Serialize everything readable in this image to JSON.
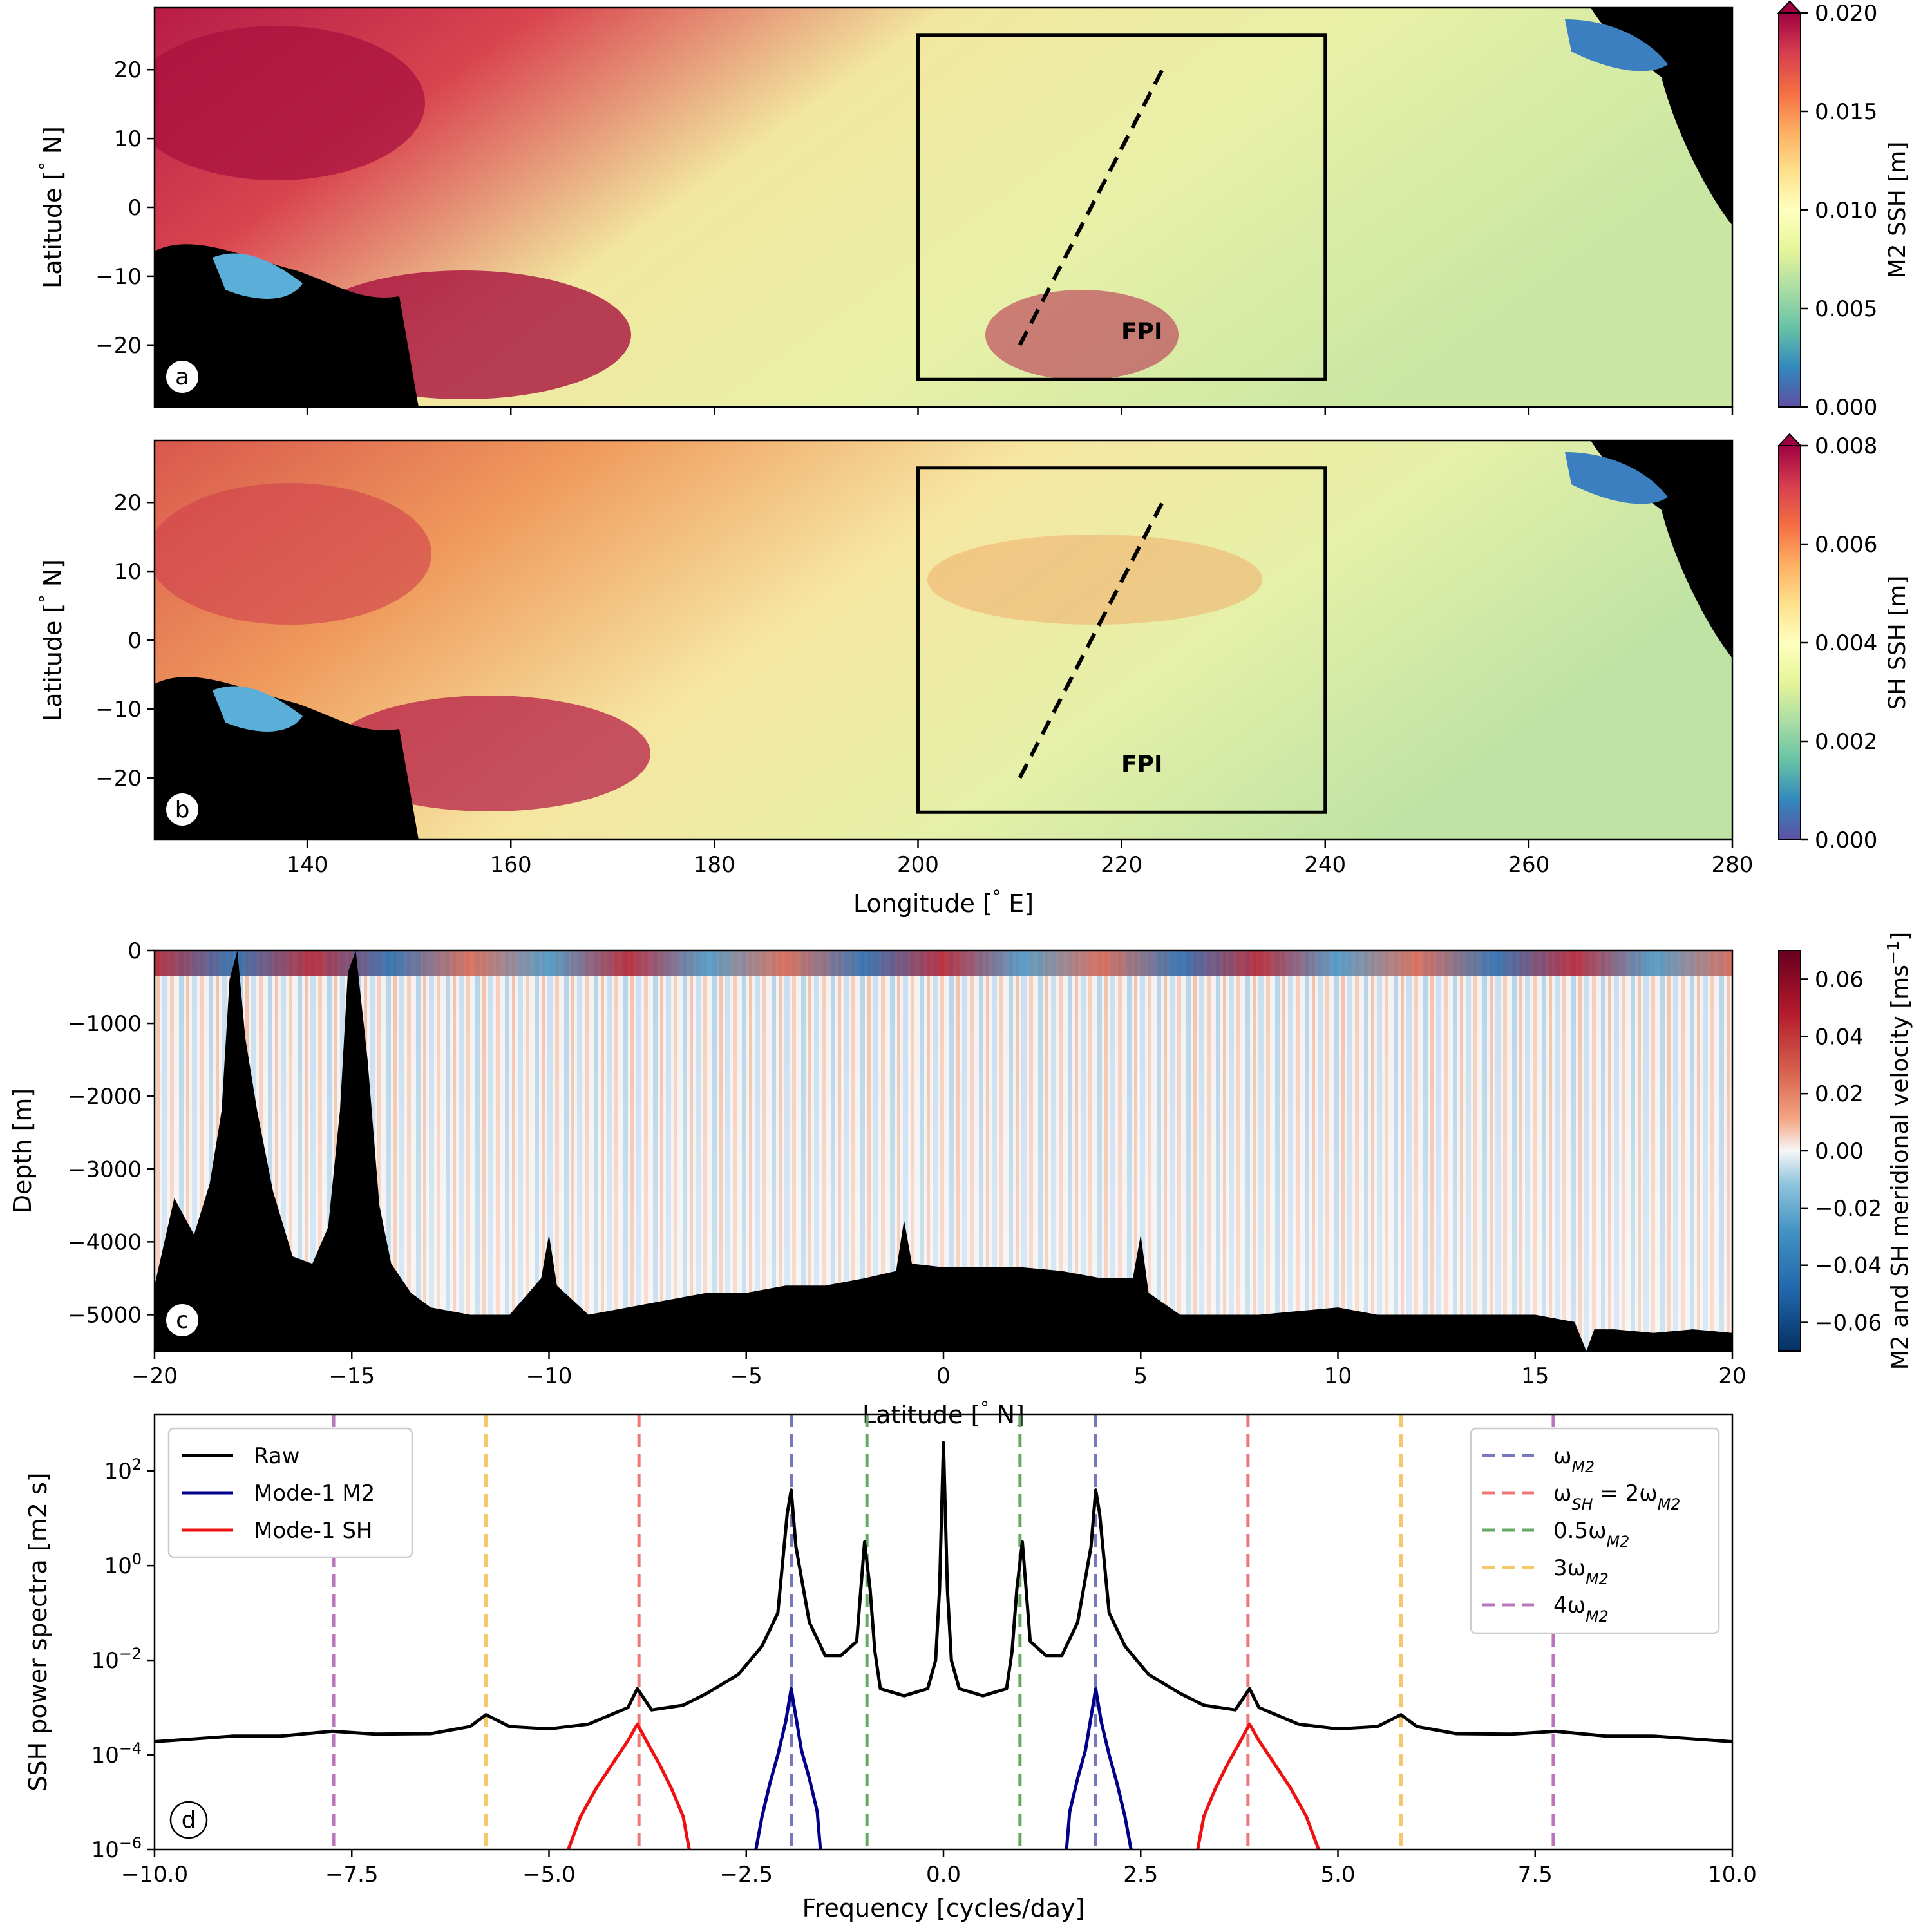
{
  "colors": {
    "raw": "#000000",
    "mode1_m2": "#00008b",
    "mode1_sh": "#ee1111",
    "omega_m2": "#7777bb",
    "omega_sh": "#ee7777",
    "half_m2": "#66aa66",
    "three_m2": "#f5c86a",
    "four_m2": "#bb77bb",
    "land": "#000000"
  },
  "chart_data": [
    {
      "panel": "a",
      "type": "heatmap",
      "ylabel": "Latitude [$^\\circ$ N]",
      "xlim": [
        125,
        280
      ],
      "ylim": [
        -29,
        29
      ],
      "yticks": [
        "20",
        "10",
        "0",
        "−10",
        "−20"
      ],
      "ytick_values": [
        20,
        10,
        0,
        -10,
        -20
      ],
      "colorbar_label": "M2 SSH [m]",
      "colorbar_range": [
        0.0,
        0.02
      ],
      "colorbar_ticks": [
        "0.020",
        "0.015",
        "0.010",
        "0.005",
        "0.000"
      ],
      "colorbar_tick_values": [
        0.02,
        0.015,
        0.01,
        0.005,
        0.0
      ],
      "colormap": "Spectral_r",
      "box": {
        "lon": [
          200,
          240
        ],
        "lat": [
          -25,
          25
        ]
      },
      "section_line": {
        "lon": [
          210,
          224
        ],
        "lat": [
          -20,
          20
        ]
      },
      "annotation": "FPI",
      "annotation_lonlat": [
        222,
        -18
      ],
      "panel_label": "a"
    },
    {
      "panel": "b",
      "type": "heatmap",
      "xlabel": "Longitude [$^\\circ$ E]",
      "ylabel": "Latitude [$^\\circ$ N]",
      "xlim": [
        125,
        280
      ],
      "ylim": [
        -29,
        29
      ],
      "xticks": [
        "140",
        "160",
        "180",
        "200",
        "220",
        "240",
        "260",
        "280"
      ],
      "xtick_values": [
        140,
        160,
        180,
        200,
        220,
        240,
        260,
        280
      ],
      "yticks": [
        "20",
        "10",
        "0",
        "−10",
        "−20"
      ],
      "ytick_values": [
        20,
        10,
        0,
        -10,
        -20
      ],
      "colorbar_label": "SH SSH [m]",
      "colorbar_range": [
        0.0,
        0.008
      ],
      "colorbar_ticks": [
        "0.008",
        "0.006",
        "0.004",
        "0.002",
        "0.000"
      ],
      "colorbar_tick_values": [
        0.008,
        0.006,
        0.004,
        0.002,
        0.0
      ],
      "colormap": "Spectral_r",
      "box": {
        "lon": [
          200,
          240
        ],
        "lat": [
          -25,
          25
        ]
      },
      "section_line": {
        "lon": [
          210,
          224
        ],
        "lat": [
          -20,
          20
        ]
      },
      "annotation": "FPI",
      "annotation_lonlat": [
        222,
        -18
      ],
      "panel_label": "b"
    },
    {
      "panel": "c",
      "type": "heatmap",
      "xlabel": "Latitude [$^\\circ$ N]",
      "ylabel": "Depth [m]",
      "xlim": [
        -20,
        20
      ],
      "ylim": [
        -5500,
        0
      ],
      "xticks": [
        "−20",
        "−15",
        "−10",
        "−5",
        "0",
        "5",
        "10",
        "15",
        "20"
      ],
      "xtick_values": [
        -20,
        -15,
        -10,
        -5,
        0,
        5,
        10,
        15,
        20
      ],
      "yticks": [
        "0",
        "−1000",
        "−2000",
        "−3000",
        "−4000",
        "−5000"
      ],
      "ytick_values": [
        0,
        -1000,
        -2000,
        -3000,
        -4000,
        -5000
      ],
      "colorbar_label": "M2 and SH meridional velocity [ms$^{-1}$]",
      "colorbar_range": [
        -0.07,
        0.07
      ],
      "colorbar_ticks": [
        "0.06",
        "0.04",
        "0.02",
        "0.00",
        "−0.02",
        "−0.04",
        "−0.06"
      ],
      "colorbar_tick_values": [
        0.06,
        0.04,
        0.02,
        0.0,
        -0.02,
        -0.04,
        -0.06
      ],
      "colormap": "RdBu_r",
      "bathymetry": {
        "lat": [
          -20,
          -19.5,
          -19,
          -18.6,
          -18.3,
          -18.1,
          -17.9,
          -17.7,
          -17.4,
          -17,
          -16.5,
          -16,
          -15.6,
          -15.3,
          -15.1,
          -14.9,
          -14.6,
          -14.3,
          -14,
          -13.5,
          -13,
          -12,
          -11,
          -10.2,
          -10,
          -9.8,
          -9,
          -8,
          -7,
          -6,
          -5,
          -4,
          -3,
          -2,
          -1.2,
          -1,
          -0.8,
          0,
          1,
          2,
          3,
          4,
          4.8,
          5,
          5.2,
          6,
          7,
          8,
          9,
          10,
          11,
          12,
          13,
          14,
          15,
          16,
          16.3,
          16.5,
          17,
          18,
          19,
          20
        ],
        "depth": [
          -4600,
          -3400,
          -3900,
          -3200,
          -2200,
          -400,
          0,
          -1200,
          -2200,
          -3300,
          -4200,
          -4300,
          -3800,
          -2200,
          -300,
          0,
          -1500,
          -3500,
          -4300,
          -4700,
          -4900,
          -5000,
          -5000,
          -4500,
          -3900,
          -4600,
          -5000,
          -4900,
          -4800,
          -4700,
          -4700,
          -4600,
          -4600,
          -4500,
          -4400,
          -3700,
          -4300,
          -4350,
          -4350,
          -4350,
          -4400,
          -4500,
          -4500,
          -3900,
          -4700,
          -5000,
          -5000,
          -5000,
          -4950,
          -4900,
          -5000,
          -5000,
          -5000,
          -5000,
          -5000,
          -5100,
          -5500,
          -5200,
          -5200,
          -5250,
          -5200,
          -5250
        ]
      },
      "panel_label": "c"
    },
    {
      "panel": "d",
      "type": "line",
      "xlabel": "Frequency [cycles/day]",
      "ylabel": "SSH power spectra [m$^2$ s]",
      "xlim": [
        -10,
        10
      ],
      "ylim_log10": [
        -6,
        3.2
      ],
      "yscale": "log",
      "xticks": [
        "−10.0",
        "−7.5",
        "−5.0",
        "−2.5",
        "0.0",
        "2.5",
        "5.0",
        "7.5",
        "10.0"
      ],
      "xtick_values": [
        -10,
        -7.5,
        -5,
        -2.5,
        0,
        2.5,
        5,
        7.5,
        10
      ],
      "yticks": [
        "10$^{2}$",
        "10$^{0}$",
        "10$^{-2}$",
        "10$^{-4}$",
        "10$^{-6}$"
      ],
      "ytick_exponents": [
        2,
        0,
        -2,
        -4,
        -6
      ],
      "legend1_position": "upper-left",
      "legend2_position": "upper-right",
      "series": [
        {
          "name": "Raw",
          "color": "#000000",
          "points": [
            [
              -10,
              -3.72
            ],
            [
              -9,
              -3.6
            ],
            [
              -8.4,
              -3.6
            ],
            [
              -7.75,
              -3.5
            ],
            [
              -7.2,
              -3.56
            ],
            [
              -6.5,
              -3.55
            ],
            [
              -6.0,
              -3.4
            ],
            [
              -5.8,
              -3.15
            ],
            [
              -5.5,
              -3.4
            ],
            [
              -5.0,
              -3.45
            ],
            [
              -4.5,
              -3.35
            ],
            [
              -4.0,
              -3.0
            ],
            [
              -3.88,
              -2.6
            ],
            [
              -3.7,
              -3.05
            ],
            [
              -3.3,
              -2.95
            ],
            [
              -3.0,
              -2.7
            ],
            [
              -2.6,
              -2.3
            ],
            [
              -2.3,
              -1.7
            ],
            [
              -2.1,
              -1.0
            ],
            [
              -1.98,
              1.1
            ],
            [
              -1.93,
              1.6
            ],
            [
              -1.87,
              0.4
            ],
            [
              -1.7,
              -1.2
            ],
            [
              -1.5,
              -1.9
            ],
            [
              -1.3,
              -1.9
            ],
            [
              -1.1,
              -1.6
            ],
            [
              -1.0,
              0.5
            ],
            [
              -0.93,
              -0.5
            ],
            [
              -0.87,
              -1.8
            ],
            [
              -0.8,
              -2.6
            ],
            [
              -0.5,
              -2.75
            ],
            [
              -0.2,
              -2.6
            ],
            [
              -0.1,
              -2.0
            ],
            [
              -0.05,
              -0.5
            ],
            [
              0,
              2.6
            ],
            [
              0.05,
              -0.5
            ],
            [
              0.1,
              -2.0
            ],
            [
              0.2,
              -2.6
            ],
            [
              0.5,
              -2.75
            ],
            [
              0.8,
              -2.6
            ],
            [
              0.87,
              -1.8
            ],
            [
              0.93,
              -0.5
            ],
            [
              1.0,
              0.5
            ],
            [
              1.1,
              -1.6
            ],
            [
              1.3,
              -1.9
            ],
            [
              1.5,
              -1.9
            ],
            [
              1.7,
              -1.2
            ],
            [
              1.87,
              0.4
            ],
            [
              1.93,
              1.6
            ],
            [
              1.98,
              1.1
            ],
            [
              2.1,
              -1.0
            ],
            [
              2.3,
              -1.7
            ],
            [
              2.6,
              -2.3
            ],
            [
              3.0,
              -2.7
            ],
            [
              3.3,
              -2.95
            ],
            [
              3.7,
              -3.05
            ],
            [
              3.88,
              -2.6
            ],
            [
              4.0,
              -3.0
            ],
            [
              4.5,
              -3.35
            ],
            [
              5.0,
              -3.45
            ],
            [
              5.5,
              -3.4
            ],
            [
              5.8,
              -3.15
            ],
            [
              6.0,
              -3.4
            ],
            [
              6.5,
              -3.55
            ],
            [
              7.2,
              -3.56
            ],
            [
              7.75,
              -3.5
            ],
            [
              8.4,
              -3.6
            ],
            [
              9,
              -3.6
            ],
            [
              10,
              -3.72
            ]
          ]
        },
        {
          "name": "Mode-1 M2",
          "color": "#00008b",
          "points": [
            [
              -2.4,
              -6.2
            ],
            [
              -2.3,
              -5.3
            ],
            [
              -2.2,
              -4.6
            ],
            [
              -2.1,
              -4.0
            ],
            [
              -2.0,
              -3.3
            ],
            [
              -1.93,
              -2.6
            ],
            [
              -1.87,
              -3.2
            ],
            [
              -1.8,
              -3.9
            ],
            [
              -1.7,
              -4.5
            ],
            [
              -1.6,
              -5.2
            ],
            [
              -1.55,
              -6.2
            ]
          ]
        },
        {
          "name": "Mode-1 M2",
          "color": "#00008b",
          "points": [
            [
              1.55,
              -6.2
            ],
            [
              1.6,
              -5.2
            ],
            [
              1.7,
              -4.5
            ],
            [
              1.8,
              -3.9
            ],
            [
              1.87,
              -3.2
            ],
            [
              1.93,
              -2.6
            ],
            [
              2.0,
              -3.3
            ],
            [
              2.1,
              -4.0
            ],
            [
              2.2,
              -4.6
            ],
            [
              2.3,
              -5.3
            ],
            [
              2.4,
              -6.2
            ]
          ]
        },
        {
          "name": "Mode-1 SH",
          "color": "#ee1111",
          "points": [
            [
              -4.8,
              -6.2
            ],
            [
              -4.6,
              -5.3
            ],
            [
              -4.4,
              -4.7
            ],
            [
              -4.2,
              -4.2
            ],
            [
              -4.0,
              -3.7
            ],
            [
              -3.88,
              -3.35
            ],
            [
              -3.75,
              -3.75
            ],
            [
              -3.6,
              -4.2
            ],
            [
              -3.45,
              -4.7
            ],
            [
              -3.3,
              -5.3
            ],
            [
              -3.2,
              -6.2
            ]
          ]
        },
        {
          "name": "Mode-1 SH",
          "color": "#ee1111",
          "points": [
            [
              3.2,
              -6.2
            ],
            [
              3.3,
              -5.3
            ],
            [
              3.45,
              -4.7
            ],
            [
              3.6,
              -4.2
            ],
            [
              3.75,
              -3.75
            ],
            [
              3.88,
              -3.35
            ],
            [
              4.0,
              -3.7
            ],
            [
              4.2,
              -4.2
            ],
            [
              4.4,
              -4.7
            ],
            [
              4.6,
              -5.3
            ],
            [
              4.8,
              -6.2
            ]
          ]
        }
      ],
      "legend_series": [
        {
          "name": "Raw",
          "color": "#000000"
        },
        {
          "name": "Mode-1 M2",
          "color": "#00008b"
        },
        {
          "name": "Mode-1 SH",
          "color": "#ee1111"
        }
      ],
      "vlines": [
        {
          "name": "ωM2",
          "label_main": "ω",
          "label_sub": "M2",
          "label_tail": "",
          "color": "#7777bb",
          "x": [
            -1.93,
            1.93
          ]
        },
        {
          "name": "ωSH = 2ωM2",
          "label_main": "ω",
          "label_sub": "SH",
          "label_tail": " = 2ω",
          "label_sub2": "M2",
          "color": "#ee7777",
          "x": [
            -3.86,
            3.86
          ]
        },
        {
          "name": "0.5ωM2",
          "label_main": "0.5ω",
          "label_sub": "M2",
          "label_tail": "",
          "color": "#66aa66",
          "x": [
            -0.97,
            0.97
          ]
        },
        {
          "name": "3ωM2",
          "label_main": "3ω",
          "label_sub": "M2",
          "label_tail": "",
          "color": "#f5c86a",
          "x": [
            -5.8,
            5.8
          ]
        },
        {
          "name": "4ωM2",
          "label_main": "4ω",
          "label_sub": "M2",
          "label_tail": "",
          "color": "#bb77bb",
          "x": [
            -7.73,
            7.73
          ]
        }
      ],
      "panel_label": "d"
    }
  ]
}
